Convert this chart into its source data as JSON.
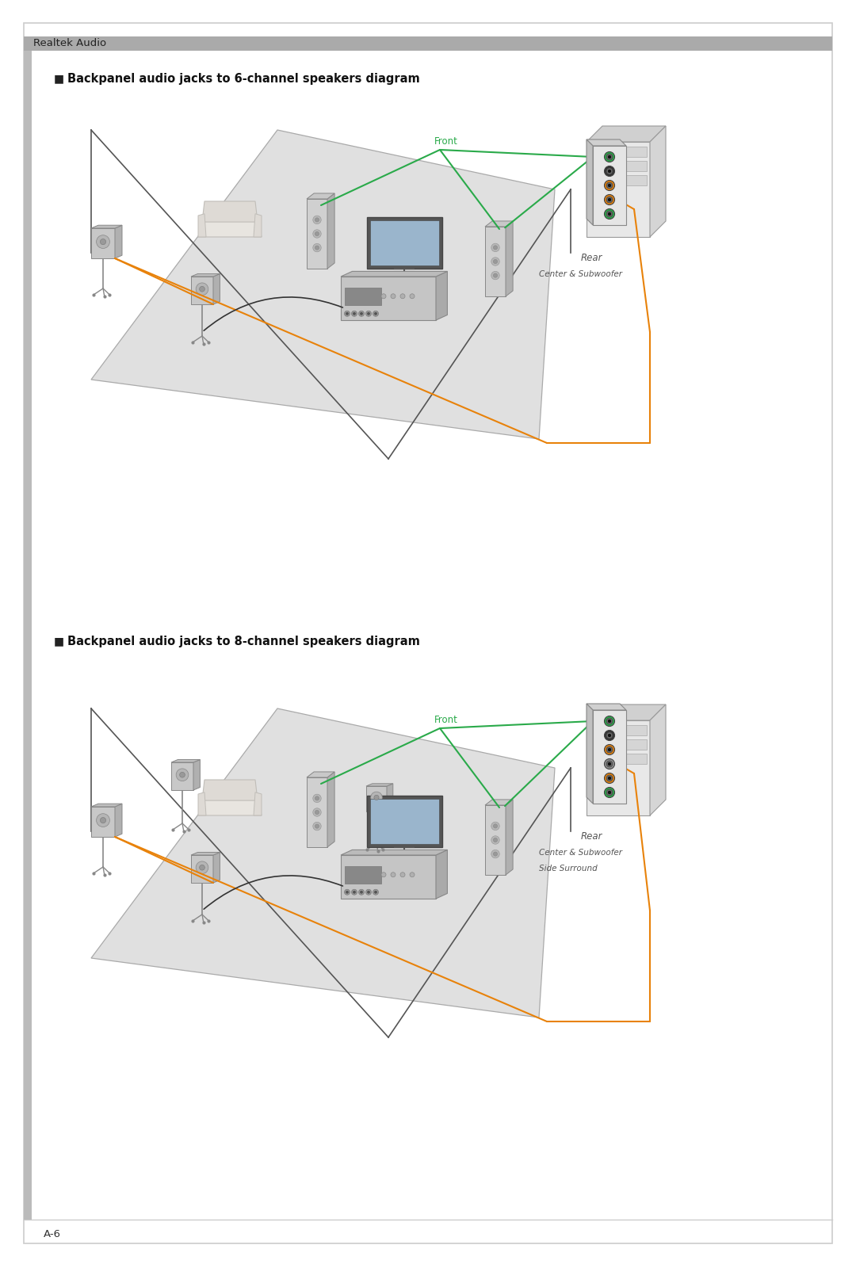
{
  "page_title": "Realtek Audio",
  "page_number": "A-6",
  "diagram1_title": "Backpanel audio jacks to 6-channel speakers diagram",
  "diagram2_title": "Backpanel audio jacks to 8-channel speakers diagram",
  "background_color": "#ffffff",
  "text_color": "#333333",
  "title_color": "#1a1a1a",
  "green_wire": "#2aaa4a",
  "orange_wire": "#e8820a",
  "black_wire": "#333333",
  "floor_color": "#e0e0e0",
  "speaker_gray": "#b0b0b0",
  "speaker_dark": "#888888",
  "jack_green": "#2aaa4a",
  "jack_orange": "#e8820a",
  "jack_gray": "#909090",
  "jack_black": "#333333",
  "label_front": "Front",
  "label_rear": "Rear",
  "label_center_sub": "Center & Subwoofer",
  "label_side": "Side Surround"
}
